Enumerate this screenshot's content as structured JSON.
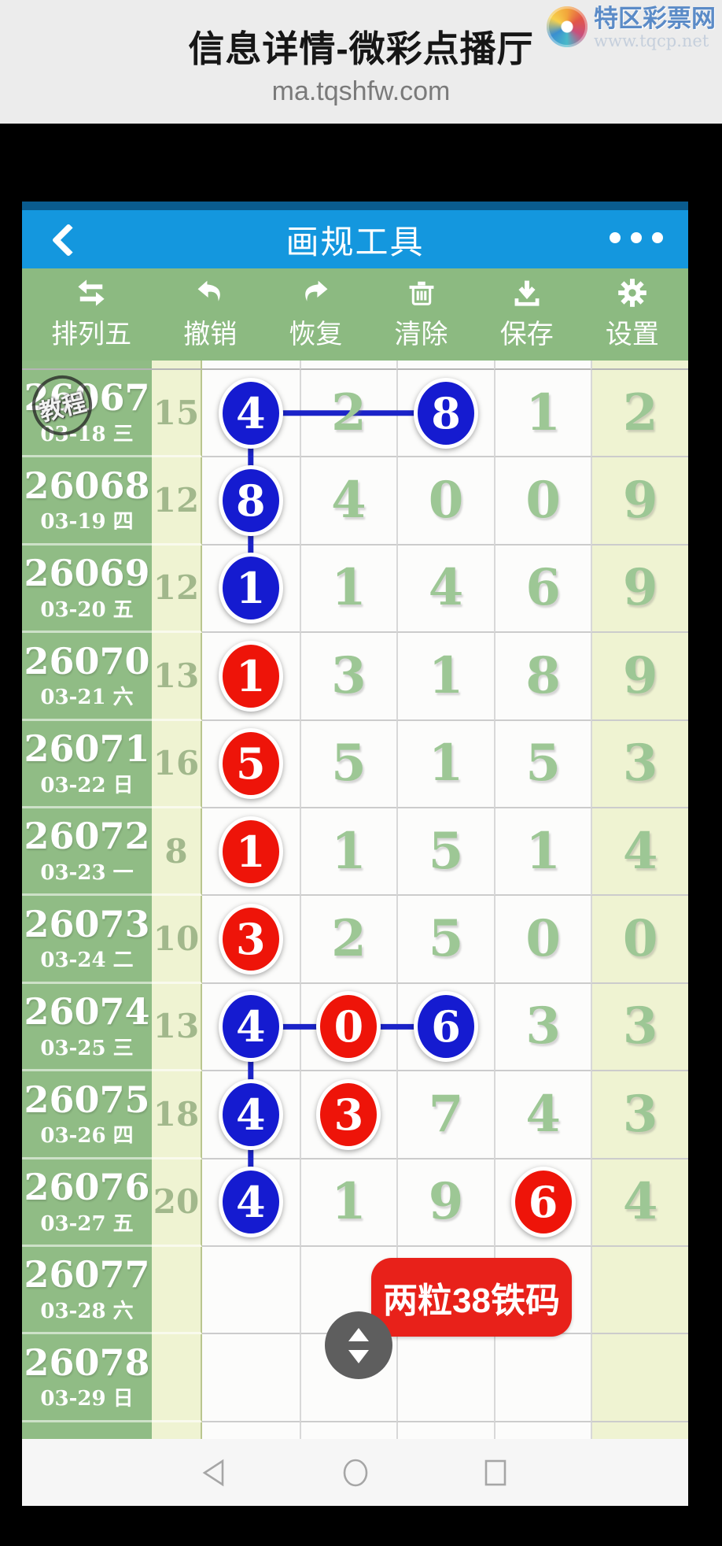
{
  "site_header": {
    "title": "信息详情-微彩点播厅",
    "url": "ma.tqshfw.com",
    "logo": {
      "name": "特区彩票网",
      "subtitle": "www.tqcp.net",
      "icon": "color-swirl-logo-icon"
    }
  },
  "app": {
    "header": {
      "title": "画规工具",
      "back_icon": "chevron-left-icon",
      "menu_icon": "ellipsis-icon"
    },
    "toolbar": [
      {
        "icon": "swap-arrows-icon",
        "label": "排列五"
      },
      {
        "icon": "undo-arrow-icon",
        "label": "撤销"
      },
      {
        "icon": "redo-arrow-icon",
        "label": "恢复"
      },
      {
        "icon": "trash-icon",
        "label": "清除"
      },
      {
        "icon": "download-icon",
        "label": "保存"
      },
      {
        "icon": "gear-icon",
        "label": "设置"
      }
    ],
    "stamp_label": "教程",
    "badge_label": "两粒38铁码",
    "handle_icon": "up-down-arrows-icon",
    "table": {
      "rows": [
        {
          "period": "26067",
          "date": "03-18 三",
          "sum": "15",
          "digits": [
            "4",
            "2",
            "8",
            "1",
            "2"
          ],
          "marks": [
            "blue",
            null,
            "blue",
            null,
            null
          ]
        },
        {
          "period": "26068",
          "date": "03-19 四",
          "sum": "12",
          "digits": [
            "8",
            "4",
            "0",
            "0",
            "9"
          ],
          "marks": [
            "blue",
            null,
            null,
            null,
            null
          ]
        },
        {
          "period": "26069",
          "date": "03-20 五",
          "sum": "12",
          "digits": [
            "1",
            "1",
            "4",
            "6",
            "9"
          ],
          "marks": [
            "blue",
            null,
            null,
            null,
            null
          ]
        },
        {
          "period": "26070",
          "date": "03-21 六",
          "sum": "13",
          "digits": [
            "1",
            "3",
            "1",
            "8",
            "9"
          ],
          "marks": [
            "red",
            null,
            null,
            null,
            null
          ]
        },
        {
          "period": "26071",
          "date": "03-22 日",
          "sum": "16",
          "digits": [
            "5",
            "5",
            "1",
            "5",
            "3"
          ],
          "marks": [
            "red",
            null,
            null,
            null,
            null
          ]
        },
        {
          "period": "26072",
          "date": "03-23 一",
          "sum": "8",
          "digits": [
            "1",
            "1",
            "5",
            "1",
            "4"
          ],
          "marks": [
            "red",
            null,
            null,
            null,
            null
          ]
        },
        {
          "period": "26073",
          "date": "03-24 二",
          "sum": "10",
          "digits": [
            "3",
            "2",
            "5",
            "0",
            "0"
          ],
          "marks": [
            "red",
            null,
            null,
            null,
            null
          ]
        },
        {
          "period": "26074",
          "date": "03-25 三",
          "sum": "13",
          "digits": [
            "4",
            "0",
            "6",
            "3",
            "3"
          ],
          "marks": [
            "blue",
            "red",
            "blue",
            null,
            null
          ]
        },
        {
          "period": "26075",
          "date": "03-26 四",
          "sum": "18",
          "digits": [
            "4",
            "3",
            "7",
            "4",
            "3"
          ],
          "marks": [
            "blue",
            "red",
            null,
            null,
            null
          ]
        },
        {
          "period": "26076",
          "date": "03-27 五",
          "sum": "20",
          "digits": [
            "4",
            "1",
            "9",
            "6",
            "4"
          ],
          "marks": [
            "blue",
            null,
            null,
            "red",
            null
          ]
        },
        {
          "period": "26077",
          "date": "03-28 六",
          "sum": "",
          "digits": [
            "",
            "",
            "",
            "",
            ""
          ],
          "marks": [
            null,
            null,
            null,
            null,
            null
          ]
        },
        {
          "period": "26078",
          "date": "03-29 日",
          "sum": "",
          "digits": [
            "",
            "",
            "",
            "",
            ""
          ],
          "marks": [
            null,
            null,
            null,
            null,
            null
          ]
        }
      ],
      "connections": [
        {
          "from": [
            0,
            0
          ],
          "to": [
            0,
            2
          ]
        },
        {
          "from": [
            0,
            0
          ],
          "to": [
            1,
            0
          ]
        },
        {
          "from": [
            1,
            0
          ],
          "to": [
            2,
            0
          ]
        },
        {
          "from": [
            7,
            0
          ],
          "to": [
            7,
            1
          ]
        },
        {
          "from": [
            7,
            1
          ],
          "to": [
            7,
            2
          ]
        },
        {
          "from": [
            7,
            0
          ],
          "to": [
            8,
            0
          ]
        },
        {
          "from": [
            8,
            0
          ],
          "to": [
            9,
            0
          ]
        }
      ]
    },
    "navbar": [
      {
        "icon": "back-triangle-icon"
      },
      {
        "icon": "home-circle-icon"
      },
      {
        "icon": "recents-square-icon"
      }
    ]
  },
  "colors": {
    "app_bar_blue": "#1497de",
    "status_strip_blue": "#0a5c8f",
    "toolbar_green": "#8cba81",
    "period_green": "#90bc85",
    "pale_cell": "#eff3d2",
    "digit_green": "#9dc795",
    "circle_blue": "#151bd0",
    "circle_red": "#ee1409",
    "line_blue": "#1b23c8",
    "badge_red": "#e8211a"
  }
}
